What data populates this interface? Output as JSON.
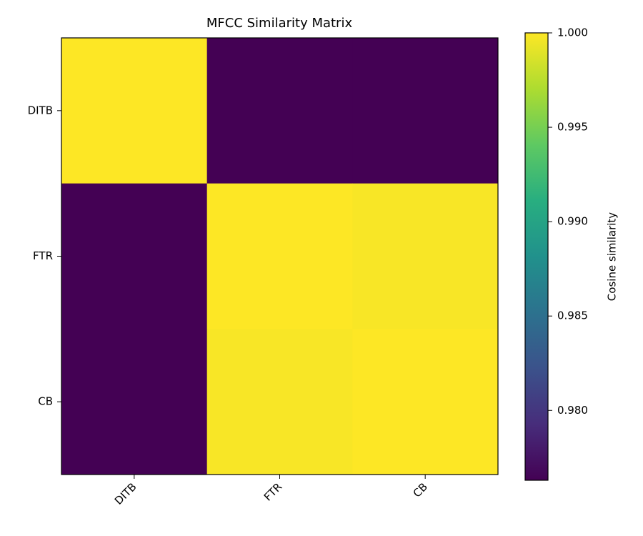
{
  "chart_data": {
    "type": "heatmap",
    "title": "MFCC Similarity Matrix",
    "x": [
      "DITB",
      "FTR",
      "CB"
    ],
    "y": [
      "DITB",
      "FTR",
      "CB"
    ],
    "values": [
      [
        1.0,
        0.9763,
        0.9763
      ],
      [
        0.9763,
        1.0,
        0.9998
      ],
      [
        0.9763,
        0.9998,
        1.0
      ]
    ],
    "colormap": "viridis",
    "colorbar": {
      "label": "Cosine similarity",
      "lim": [
        0.9763,
        1.0
      ],
      "ticks": [
        {
          "value": 0.98,
          "label": "0.980"
        },
        {
          "value": 0.985,
          "label": "0.985"
        },
        {
          "value": 0.99,
          "label": "0.990"
        },
        {
          "value": 0.995,
          "label": "0.995"
        },
        {
          "value": 1.0,
          "label": "1.000"
        }
      ]
    }
  }
}
